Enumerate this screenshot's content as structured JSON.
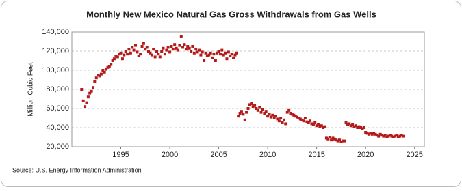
{
  "chart_data": {
    "type": "scatter",
    "title": "Monthly New Mexico Natural Gas Gross Withdrawals from Gas Wells",
    "y_label": "Million Cubic Feet",
    "source": "Source: U.S. Energy Information Administration",
    "color": "#b31b1b",
    "grid": true,
    "xlim": [
      1990,
      2026
    ],
    "xticks": [
      1995,
      2000,
      2005,
      2010,
      2015,
      2020,
      2025
    ],
    "ylim": [
      20000,
      140000
    ],
    "yticks": [
      {
        "value": 20000,
        "label": "20,000"
      },
      {
        "value": 40000,
        "label": "40,000"
      },
      {
        "value": 60000,
        "label": "60,000"
      },
      {
        "value": 80000,
        "label": "80,000"
      },
      {
        "value": 100000,
        "label": "100,000"
      },
      {
        "value": 120000,
        "label": "120,000"
      },
      {
        "value": 140000,
        "label": "140,000"
      }
    ],
    "x": [
      1991,
      1991.17,
      1991.33,
      1991.5,
      1991.67,
      1991.83,
      1992,
      1992.17,
      1992.33,
      1992.5,
      1992.67,
      1992.83,
      1993,
      1993.17,
      1993.33,
      1993.5,
      1993.67,
      1993.83,
      1994,
      1994.17,
      1994.33,
      1994.5,
      1994.67,
      1994.83,
      1995,
      1995.17,
      1995.33,
      1995.5,
      1995.67,
      1995.83,
      1996,
      1996.17,
      1996.33,
      1996.5,
      1996.67,
      1996.83,
      1997,
      1997.17,
      1997.33,
      1997.5,
      1997.67,
      1997.83,
      1998,
      1998.17,
      1998.33,
      1998.5,
      1998.67,
      1998.83,
      1999,
      1999.17,
      1999.33,
      1999.5,
      1999.67,
      1999.83,
      2000,
      2000.17,
      2000.33,
      2000.5,
      2000.67,
      2000.83,
      2001,
      2001.17,
      2001.33,
      2001.5,
      2001.67,
      2001.83,
      2002,
      2002.17,
      2002.33,
      2002.5,
      2002.67,
      2002.83,
      2003,
      2003.17,
      2003.33,
      2003.5,
      2003.67,
      2003.83,
      2004,
      2004.17,
      2004.33,
      2004.5,
      2004.67,
      2004.83,
      2005,
      2005.17,
      2005.33,
      2005.5,
      2005.67,
      2005.83,
      2006,
      2006.17,
      2006.33,
      2006.5,
      2006.67,
      2006.83,
      2007,
      2007.17,
      2007.33,
      2007.5,
      2007.67,
      2007.83,
      2008,
      2008.17,
      2008.33,
      2008.5,
      2008.67,
      2008.83,
      2009,
      2009.17,
      2009.33,
      2009.5,
      2009.67,
      2009.83,
      2010,
      2010.17,
      2010.33,
      2010.5,
      2010.67,
      2010.83,
      2011,
      2011.17,
      2011.33,
      2011.5,
      2011.67,
      2011.83,
      2012,
      2012.17,
      2012.33,
      2012.5,
      2012.67,
      2012.83,
      2013,
      2013.17,
      2013.33,
      2013.5,
      2013.67,
      2013.83,
      2014,
      2014.17,
      2014.33,
      2014.5,
      2014.67,
      2014.83,
      2015,
      2015.17,
      2015.33,
      2015.5,
      2015.67,
      2015.83,
      2016,
      2016.17,
      2016.33,
      2016.5,
      2016.67,
      2016.83,
      2017,
      2017.17,
      2017.33,
      2017.5,
      2017.67,
      2017.83,
      2018,
      2018.17,
      2018.33,
      2018.5,
      2018.67,
      2018.83,
      2019,
      2019.17,
      2019.33,
      2019.5,
      2019.67,
      2019.83,
      2020,
      2020.17,
      2020.33,
      2020.5,
      2020.67,
      2020.83,
      2021,
      2021.17,
      2021.33,
      2021.5,
      2021.67,
      2021.83,
      2022,
      2022.17,
      2022.33,
      2022.5,
      2022.67,
      2022.83,
      2023,
      2023.17,
      2023.33,
      2023.5,
      2023.67,
      2023.83
    ],
    "values": [
      80000,
      68000,
      62000,
      66000,
      72000,
      76000,
      78000,
      82000,
      88000,
      92000,
      95000,
      94000,
      96000,
      100000,
      98000,
      101000,
      103000,
      104000,
      106000,
      110000,
      112000,
      115000,
      114000,
      117000,
      118000,
      112000,
      116000,
      120000,
      117000,
      122000,
      118000,
      124000,
      121000,
      126000,
      119000,
      115000,
      117000,
      125000,
      128000,
      122000,
      124000,
      120000,
      118000,
      116000,
      122000,
      114000,
      120000,
      117000,
      114000,
      120000,
      123000,
      117000,
      121000,
      124000,
      119000,
      125000,
      122000,
      127000,
      123000,
      121000,
      126000,
      135000,
      124000,
      127000,
      122000,
      125000,
      123000,
      120000,
      125000,
      118000,
      122000,
      119000,
      121000,
      116000,
      119000,
      110000,
      118000,
      115000,
      116000,
      118000,
      113000,
      117000,
      110000,
      118000,
      120000,
      117000,
      121000,
      116000,
      118000,
      112000,
      119000,
      115000,
      117000,
      113000,
      116000,
      118000,
      52000,
      55000,
      57000,
      54000,
      48000,
      56000,
      60000,
      64000,
      65000,
      62000,
      63000,
      60000,
      58000,
      61000,
      56000,
      59000,
      55000,
      57000,
      52000,
      54000,
      51000,
      53000,
      50000,
      52000,
      49000,
      47000,
      50000,
      45000,
      48000,
      44000,
      56000,
      58000,
      55000,
      54000,
      53000,
      52000,
      51000,
      50000,
      49000,
      48000,
      47000,
      50000,
      46000,
      45000,
      47000,
      44000,
      43000,
      45000,
      42000,
      43000,
      41000,
      42000,
      40000,
      41000,
      29000,
      28000,
      30000,
      27000,
      29000,
      28000,
      27000,
      26000,
      27000,
      25000,
      26000,
      26000,
      45000,
      43000,
      44000,
      42000,
      43000,
      41000,
      42000,
      40000,
      41000,
      40000,
      39000,
      40000,
      35000,
      34000,
      33000,
      34000,
      33000,
      34000,
      33000,
      32000,
      31000,
      33000,
      32000,
      31000,
      32000,
      30000,
      31000,
      32000,
      31000,
      30000,
      31000,
      32000,
      30000,
      31000,
      32000,
      31000
    ]
  }
}
